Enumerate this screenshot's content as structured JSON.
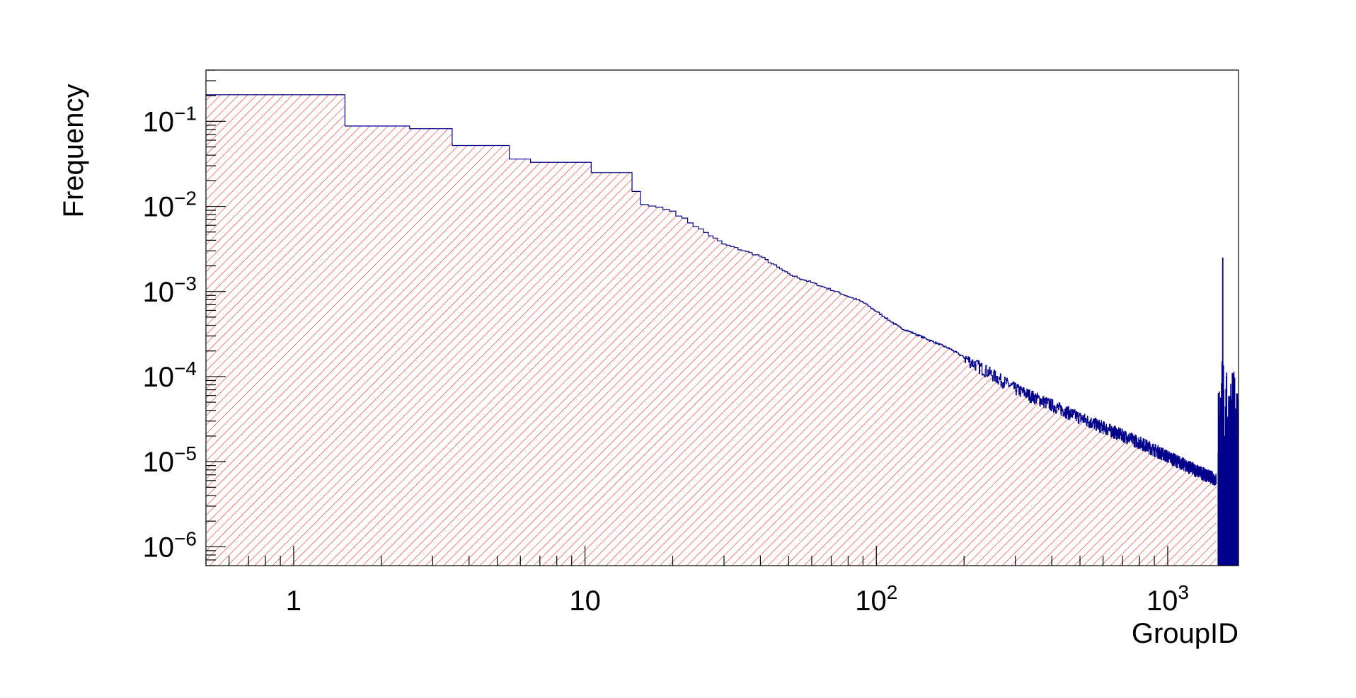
{
  "chart_data": {
    "type": "histogram",
    "title": "",
    "xlabel": "GroupID",
    "ylabel": "Frequency",
    "xscale": "log",
    "yscale": "log",
    "xlim": [
      0.5,
      1750
    ],
    "ylim": [
      6e-07,
      0.4
    ],
    "x_ticks": [
      {
        "value": 1,
        "base": "1",
        "exp": ""
      },
      {
        "value": 10,
        "base": "10",
        "exp": ""
      },
      {
        "value": 100,
        "base": "10",
        "exp": "2"
      },
      {
        "value": 1000,
        "base": "10",
        "exp": "3"
      }
    ],
    "y_ticks": [
      {
        "value": 0.1,
        "base": "10",
        "exp": "−1"
      },
      {
        "value": 0.01,
        "base": "10",
        "exp": "−2"
      },
      {
        "value": 0.001,
        "base": "10",
        "exp": "−3"
      },
      {
        "value": 0.0001,
        "base": "10",
        "exp": "−4"
      },
      {
        "value": 1e-05,
        "base": "10",
        "exp": "−5"
      },
      {
        "value": 1e-06,
        "base": "10",
        "exp": "−6"
      }
    ],
    "line_color": "#00008b",
    "fill_color": "#e8262b",
    "fill_style": "diagonal hatch",
    "bin_width": 1,
    "bins_start": 0.5,
    "bins": [
      {
        "x": 1,
        "y": 0.205
      },
      {
        "x": 2,
        "y": 0.088
      },
      {
        "x": 3,
        "y": 0.082
      },
      {
        "x": 4,
        "y": 0.052
      },
      {
        "x": 5,
        "y": 0.052
      },
      {
        "x": 6,
        "y": 0.036
      },
      {
        "x": 7,
        "y": 0.033
      },
      {
        "x": 8,
        "y": 0.033
      },
      {
        "x": 9,
        "y": 0.033
      },
      {
        "x": 10,
        "y": 0.033
      },
      {
        "x": 11,
        "y": 0.025
      },
      {
        "x": 12,
        "y": 0.025
      },
      {
        "x": 13,
        "y": 0.025
      },
      {
        "x": 14,
        "y": 0.025
      },
      {
        "x": 15,
        "y": 0.015
      },
      {
        "x": 16,
        "y": 0.0105
      },
      {
        "x": 17,
        "y": 0.0101
      },
      {
        "x": 18,
        "y": 0.0098
      },
      {
        "x": 19,
        "y": 0.0092
      },
      {
        "x": 20,
        "y": 0.0088
      }
    ],
    "trend": [
      {
        "x": 20,
        "y": 0.0088
      },
      {
        "x": 30,
        "y": 0.0036
      },
      {
        "x": 40,
        "y": 0.0026
      },
      {
        "x": 50,
        "y": 0.0016
      },
      {
        "x": 70,
        "y": 0.00105
      },
      {
        "x": 90,
        "y": 0.00075
      },
      {
        "x": 120,
        "y": 0.00038
      },
      {
        "x": 180,
        "y": 0.00021
      },
      {
        "x": 300,
        "y": 7.2e-05
      },
      {
        "x": 500,
        "y": 3.3e-05
      },
      {
        "x": 800,
        "y": 1.7e-05
      },
      {
        "x": 1200,
        "y": 8.5e-06
      },
      {
        "x": 1470,
        "y": 6.2e-06
      }
    ],
    "spike_region": {
      "x_start": 1490,
      "x_end": 1750,
      "peak_x": 1545,
      "peak_y": 0.0025,
      "secondary_peak_y": 0.00012
    }
  }
}
